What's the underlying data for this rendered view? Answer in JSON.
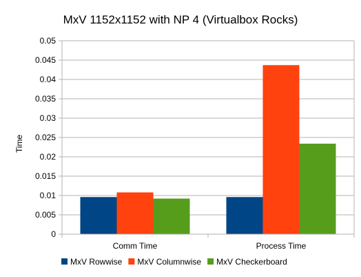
{
  "chart_data": {
    "type": "bar",
    "title": "MxV 1152x1152 with NP 4 (Virtualbox Rocks)",
    "xlabel": "",
    "ylabel": "Time",
    "categories": [
      "Comm Time",
      "Process Time"
    ],
    "series": [
      {
        "name": "MxV Rowwise",
        "color": "#004586",
        "values": [
          0.0096,
          0.0096
        ]
      },
      {
        "name": "MxV Columnwise",
        "color": "#ff420e",
        "values": [
          0.0108,
          0.0437
        ]
      },
      {
        "name": "MxV Checkerboard",
        "color": "#579d1c",
        "values": [
          0.0092,
          0.0234
        ]
      }
    ],
    "ylim": [
      0,
      0.05
    ],
    "yticks": [
      "0",
      "0.005",
      "0.01",
      "0.015",
      "0.02",
      "0.025",
      "0.03",
      "0.035",
      "0.04",
      "0.045",
      "0.05"
    ],
    "grid": true,
    "legend_position": "bottom"
  }
}
